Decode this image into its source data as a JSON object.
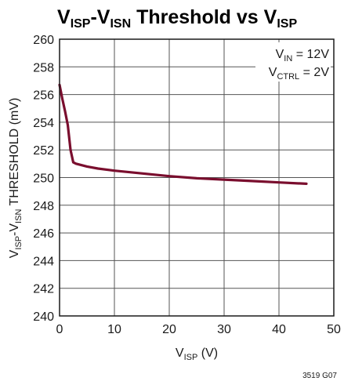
{
  "chart_data": {
    "type": "line",
    "title": {
      "main": "V",
      "sub1": "ISP",
      "sep": "-V",
      "sub2": "ISN",
      "rest": " Threshold vs V",
      "sub3": "ISP"
    },
    "xlabel": {
      "main": "V",
      "sub": "ISP",
      "rest": " (V)"
    },
    "ylabel": {
      "main": "V",
      "sub1": "ISP",
      "sep": "-V",
      "sub2": "ISN",
      "rest": " THRESHOLD (mV)"
    },
    "xlim": [
      0,
      50
    ],
    "ylim": [
      240,
      260
    ],
    "xticks": [
      "0",
      "10",
      "20",
      "30",
      "40",
      "50"
    ],
    "yticks": [
      "240",
      "242",
      "244",
      "246",
      "248",
      "250",
      "252",
      "254",
      "256",
      "258",
      "260"
    ],
    "grid": true,
    "annotations": [
      {
        "main": "V",
        "sub": "IN",
        "rest": " = 12V"
      },
      {
        "main": "V",
        "sub": "CTRL",
        "rest": " = 2V"
      }
    ],
    "figure_code": "3519 G07",
    "series": [
      {
        "color": "#7a0e2e",
        "x": [
          0,
          0.5,
          1.0,
          1.5,
          2.0,
          2.5,
          3.0,
          5,
          7,
          10,
          15,
          20,
          25,
          30,
          35,
          40,
          45
        ],
        "y": [
          256.7,
          255.7,
          254.8,
          253.8,
          252.0,
          251.1,
          251.0,
          250.8,
          250.65,
          250.5,
          250.3,
          250.1,
          249.95,
          249.85,
          249.75,
          249.65,
          249.55
        ]
      }
    ]
  }
}
